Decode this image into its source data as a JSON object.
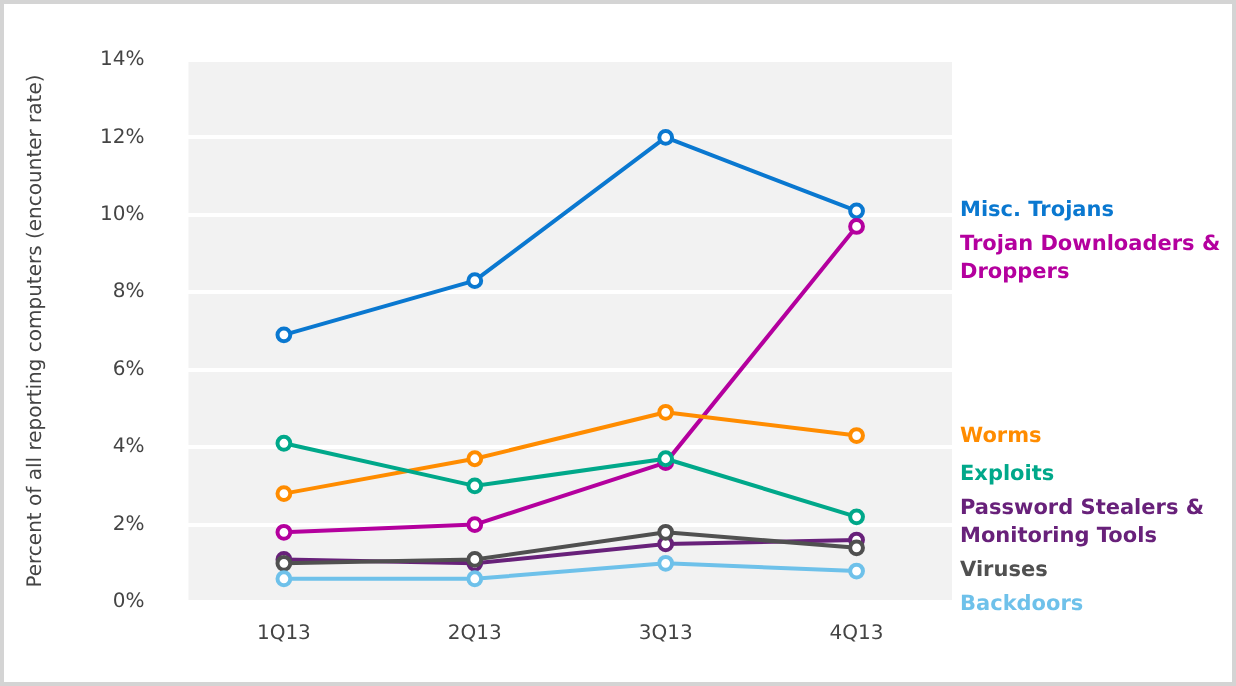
{
  "chart_data": {
    "type": "line",
    "ylabel": "Percent of all reporting computers (encounter rate)",
    "categories": [
      "1Q13",
      "2Q13",
      "3Q13",
      "4Q13"
    ],
    "series": [
      {
        "name": "Misc. Trojans",
        "color": "#0a78d0",
        "values": [
          6.9,
          8.3,
          12.0,
          10.1
        ]
      },
      {
        "name": "Trojan Downloaders & Droppers",
        "color": "#b4009e",
        "values": [
          1.8,
          2.0,
          3.6,
          9.7
        ]
      },
      {
        "name": "Worms",
        "color": "#ff8c00",
        "values": [
          2.8,
          3.7,
          4.9,
          4.3
        ]
      },
      {
        "name": "Exploits",
        "color": "#00a88a",
        "values": [
          4.1,
          3.0,
          3.7,
          2.2
        ]
      },
      {
        "name": "Password Stealers & Monitoring Tools",
        "color": "#68217a",
        "values": [
          1.1,
          1.0,
          1.5,
          1.6
        ]
      },
      {
        "name": "Viruses",
        "color": "#505050",
        "values": [
          1.0,
          1.1,
          1.8,
          1.4
        ]
      },
      {
        "name": "Backdoors",
        "color": "#6ec1ea",
        "values": [
          0.6,
          0.6,
          1.0,
          0.8
        ]
      }
    ],
    "ylim": [
      0,
      14
    ],
    "yticks": [
      {
        "value": 0,
        "label": "0%"
      },
      {
        "value": 2,
        "label": "2%"
      },
      {
        "value": 4,
        "label": "4%"
      },
      {
        "value": 6,
        "label": "6%"
      },
      {
        "value": 8,
        "label": "8%"
      },
      {
        "value": 10,
        "label": "10%"
      },
      {
        "value": 12,
        "label": "12%"
      },
      {
        "value": 14,
        "label": "14%"
      }
    ],
    "grid": "y",
    "legend": "right",
    "marker": "circle",
    "line_style": "solid"
  }
}
